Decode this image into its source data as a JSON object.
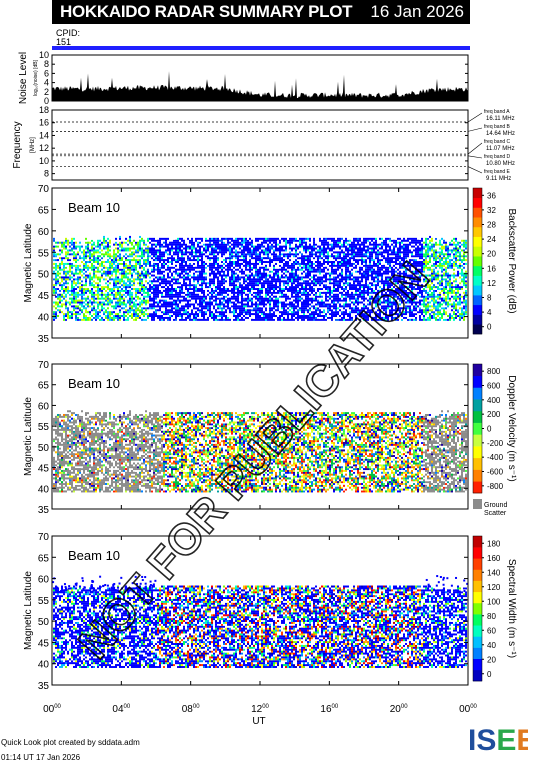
{
  "header": {
    "title": "HOKKAIDO RADAR SUMMARY PLOT",
    "date": "16 Jan 2026"
  },
  "cpid": {
    "label": "CPID:",
    "value": "151"
  },
  "footer": {
    "line1": "Quick Look plot created by sddata.adm",
    "line2": "01:14 UT 17 Jan 2026"
  },
  "logo": {
    "text": "ISEE",
    "colors": [
      "#1f4e9c",
      "#2aa84a",
      "#e07a1f"
    ]
  },
  "watermark": "NOT FOR PUBLICATION",
  "colors": {
    "cpid_bar": "#2020ff",
    "noise": "#000000",
    "ground_scatter": "#8c8c8c"
  },
  "chart_data": [
    {
      "type": "area",
      "name": "noise",
      "ylabel": "Noise Level",
      "ysublabel": "log₁₀(noise) [dB]",
      "ylim": [
        0,
        10
      ],
      "yticks": [
        0,
        2,
        4,
        6,
        8,
        10
      ],
      "x": [
        0,
        2,
        4,
        6,
        8,
        10,
        12,
        14,
        16,
        18,
        20,
        22,
        24
      ],
      "values": [
        2.6,
        2.5,
        2.7,
        2.8,
        2.7,
        2.6,
        1.2,
        1.1,
        1.2,
        1.1,
        1.2,
        2.4,
        2.5
      ]
    },
    {
      "type": "line",
      "name": "frequency",
      "ylabel": "Frequency",
      "ysublabel": "[MHz]",
      "ylim": [
        7,
        18
      ],
      "yticks": [
        8,
        10,
        12,
        14,
        16,
        18
      ],
      "bands": [
        {
          "label": "freq band A",
          "freq": "16.11 MHz",
          "value": 16.11
        },
        {
          "label": "freq band B",
          "freq": "14.64 MHz",
          "value": 14.64
        },
        {
          "label": "freq band C",
          "freq": "11.07 MHz",
          "value": 11.07
        },
        {
          "label": "freq band D",
          "freq": "10.80 MHz",
          "value": 10.8
        },
        {
          "label": "freq band E",
          "freq": "9.11 MHz",
          "value": 9.11
        }
      ]
    },
    {
      "type": "heatmap",
      "name": "power",
      "beam_label": "Beam 10",
      "ylabel": "Magnetic Latitude",
      "ylim": [
        35,
        70
      ],
      "yticks": [
        35,
        40,
        45,
        50,
        55,
        60,
        65,
        70
      ],
      "cbar_label": "Backscatter Power (dB)",
      "cbar_ticks": [
        "0",
        "4",
        "8",
        "12",
        "16",
        "20",
        "24",
        "28",
        "32",
        "36"
      ],
      "ground_scatter": false
    },
    {
      "type": "heatmap",
      "name": "velocity",
      "beam_label": "Beam 10",
      "ylabel": "Magnetic Latitude",
      "ylim": [
        35,
        70
      ],
      "yticks": [
        35,
        40,
        45,
        50,
        55,
        60,
        65,
        70
      ],
      "cbar_label": "Doppler Velocity (m s⁻¹)",
      "cbar_ticks": [
        "-800",
        "-600",
        "-400",
        "-200",
        "0",
        "200",
        "400",
        "600",
        "800"
      ],
      "ground_scatter": true,
      "ground_labels": [
        "Ground",
        "Scatter"
      ]
    },
    {
      "type": "heatmap",
      "name": "width",
      "beam_label": "Beam 10",
      "ylabel": "Magnetic Latitude",
      "ylim": [
        35,
        70
      ],
      "yticks": [
        35,
        40,
        45,
        50,
        55,
        60,
        65,
        70
      ],
      "cbar_label": "Spectral Width (m s⁻¹)",
      "cbar_ticks": [
        "0",
        "20",
        "40",
        "60",
        "80",
        "100",
        "120",
        "140",
        "160",
        "180"
      ],
      "ground_scatter": false
    }
  ],
  "xaxis": {
    "label": "UT",
    "xlim": [
      0,
      24
    ],
    "ticks": [
      {
        "h": "00",
        "m": "00",
        "v": 0
      },
      {
        "h": "04",
        "m": "00",
        "v": 4
      },
      {
        "h": "08",
        "m": "00",
        "v": 8
      },
      {
        "h": "12",
        "m": "00",
        "v": 12
      },
      {
        "h": "16",
        "m": "00",
        "v": 16
      },
      {
        "h": "20",
        "m": "00",
        "v": 20
      },
      {
        "h": "00",
        "m": "00",
        "v": 24
      }
    ]
  }
}
